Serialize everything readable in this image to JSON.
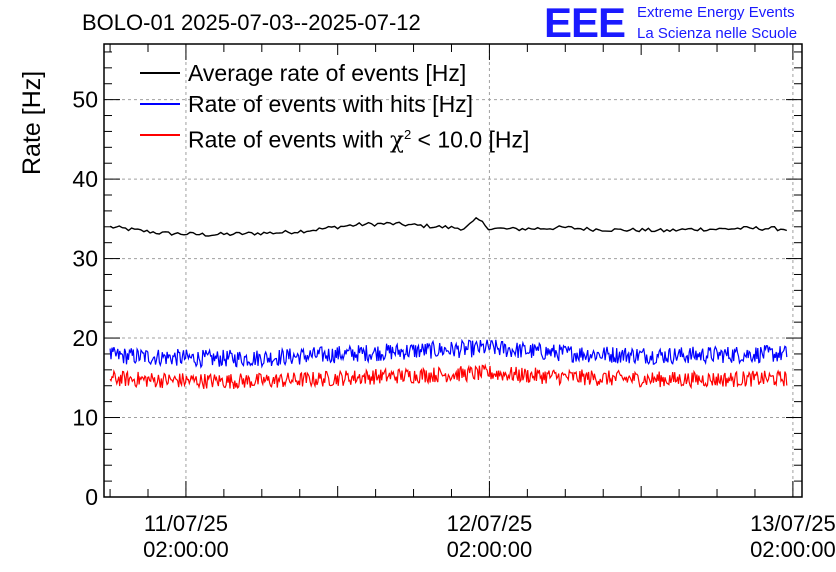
{
  "header": {
    "title": "BOLO-01 2025-07-03--2025-07-12",
    "logo_text": "EEE",
    "logo_line1": "Extreme Energy Events",
    "logo_line2": "La Scienza nelle Scuole"
  },
  "chart_data": {
    "type": "line",
    "title": "BOLO-01 2025-07-03--2025-07-12",
    "ylabel": "Rate [Hz]",
    "xlabel": "",
    "ylim": [
      0,
      57
    ],
    "yticks": [
      0,
      10,
      20,
      30,
      40,
      50
    ],
    "xlim": [
      -0.27,
      2.03
    ],
    "xticks": [
      {
        "value": 0,
        "date": "11/07/25",
        "time": "02:00:00"
      },
      {
        "value": 1,
        "date": "12/07/25",
        "time": "02:00:00"
      },
      {
        "value": 2,
        "date": "13/07/25",
        "time": "02:00:00"
      }
    ],
    "x_unit": "days since 11/07/25 02:00:00",
    "grid": true,
    "legend_position": "top-left",
    "series": [
      {
        "name": "Average rate of events [Hz]",
        "color": "#000000",
        "noise": 0.25,
        "x": [
          -0.25,
          -0.17,
          -0.08,
          0.0,
          0.08,
          0.17,
          0.25,
          0.33,
          0.42,
          0.5,
          0.58,
          0.67,
          0.75,
          0.83,
          0.92,
          0.96,
          1.0,
          1.08,
          1.17,
          1.25,
          1.33,
          1.42,
          1.5,
          1.58,
          1.67,
          1.75,
          1.83,
          1.92,
          1.98
        ],
        "y": [
          34.0,
          33.6,
          33.2,
          33.1,
          33.0,
          33.1,
          33.2,
          33.3,
          33.6,
          34.0,
          34.3,
          34.4,
          34.2,
          34.0,
          33.8,
          35.0,
          33.8,
          33.7,
          33.8,
          33.9,
          33.7,
          33.6,
          33.6,
          33.5,
          33.7,
          33.7,
          33.8,
          33.8,
          33.7
        ]
      },
      {
        "name": "Rate of events with hits [Hz]",
        "color": "#0000ff",
        "noise": 1.1,
        "x": [
          -0.25,
          -0.08,
          0.08,
          0.25,
          0.42,
          0.58,
          0.75,
          0.92,
          1.0,
          1.08,
          1.25,
          1.42,
          1.58,
          1.75,
          1.92,
          1.98
        ],
        "y": [
          17.8,
          17.6,
          17.4,
          17.5,
          17.8,
          18.1,
          18.4,
          18.6,
          18.8,
          18.5,
          18.1,
          17.9,
          17.8,
          17.9,
          18.0,
          18.0
        ]
      },
      {
        "name": "Rate of events with χ² < 10.0 [Hz]",
        "color": "#ff0000",
        "noise": 1.0,
        "x": [
          -0.25,
          -0.08,
          0.08,
          0.25,
          0.42,
          0.58,
          0.75,
          0.92,
          1.0,
          1.08,
          1.25,
          1.42,
          1.58,
          1.75,
          1.92,
          1.98
        ],
        "y": [
          14.9,
          14.7,
          14.6,
          14.6,
          14.8,
          15.1,
          15.3,
          15.5,
          15.6,
          15.4,
          15.1,
          14.9,
          14.8,
          14.8,
          14.9,
          14.9
        ]
      }
    ]
  },
  "legend": {
    "item1": "Average rate of events [Hz]",
    "item2": "Rate of events with hits [Hz]",
    "item3_pre": "Rate of events with ",
    "item3_chi": "χ",
    "item3_sup": "2",
    "item3_post": " < 10.0 [Hz]"
  }
}
